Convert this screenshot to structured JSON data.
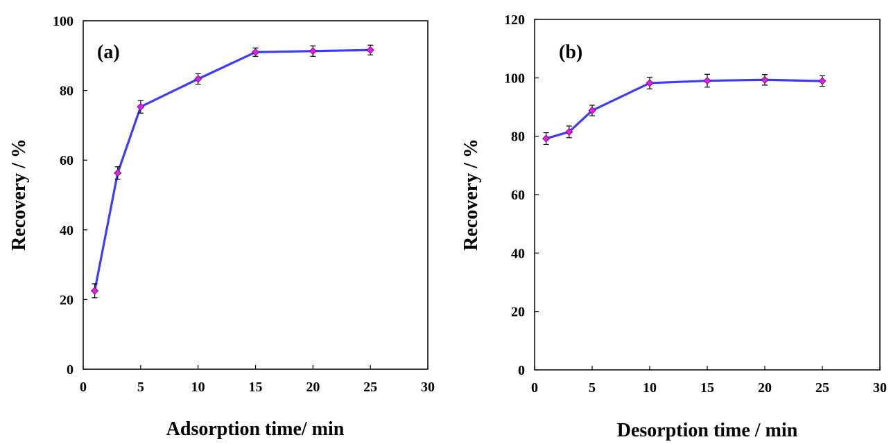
{
  "chart_data": [
    {
      "type": "line",
      "panel_label": "(a)",
      "xlabel": "Adsorption time/ min",
      "ylabel": "Recovery / %",
      "xlim": [
        0,
        30
      ],
      "ylim": [
        0,
        100
      ],
      "xticks": [
        "0",
        "5",
        "10",
        "15",
        "20",
        "25",
        "30"
      ],
      "yticks": [
        "0",
        "20",
        "40",
        "60",
        "80",
        "100"
      ],
      "grid": false,
      "line_color": "#3b3bff",
      "marker_color": "#e020e0",
      "series": [
        {
          "x": [
            1,
            3,
            5,
            10,
            15,
            20,
            25
          ],
          "y": [
            22.5,
            56.3,
            75.3,
            83.3,
            91.0,
            91.3,
            91.6
          ],
          "error": [
            2.0,
            1.8,
            1.8,
            1.5,
            1.2,
            1.5,
            1.4
          ]
        }
      ]
    },
    {
      "type": "line",
      "panel_label": "(b)",
      "xlabel": "Desorption time / min",
      "ylabel": "Recovery / %",
      "xlim": [
        0,
        30
      ],
      "ylim": [
        0,
        120
      ],
      "xticks": [
        "0",
        "5",
        "10",
        "15",
        "20",
        "25",
        "30"
      ],
      "yticks": [
        "0",
        "20",
        "40",
        "60",
        "80",
        "100",
        "120"
      ],
      "grid": false,
      "line_color": "#3b3bff",
      "marker_color": "#e020e0",
      "series": [
        {
          "x": [
            1,
            3,
            5,
            10,
            15,
            20,
            25
          ],
          "y": [
            79.2,
            81.5,
            88.8,
            98.2,
            99.0,
            99.3,
            98.9
          ],
          "error": [
            2.0,
            2.0,
            1.8,
            2.0,
            2.2,
            1.8,
            1.8
          ]
        }
      ]
    }
  ]
}
